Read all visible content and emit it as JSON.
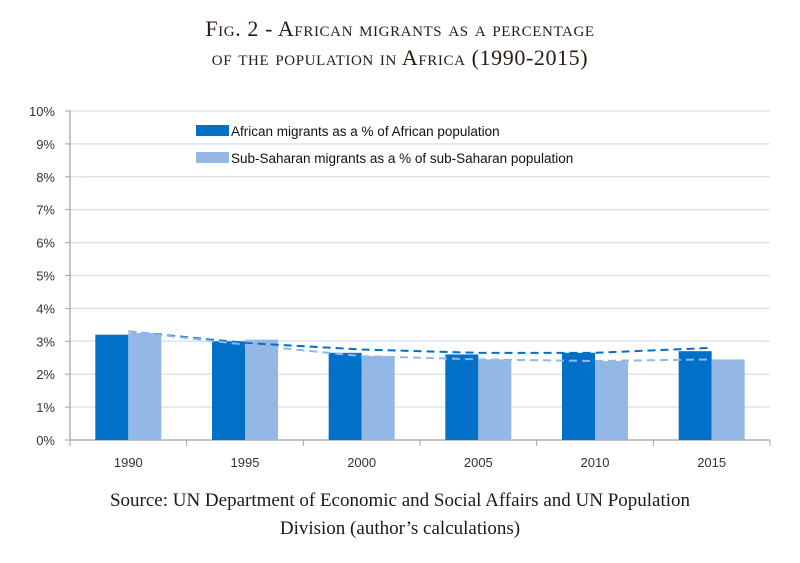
{
  "figure": {
    "title_line1": "Fig. 2 - African migrants as a percentage",
    "title_line2": "of the population in Africa (1990-2015)",
    "source_line1": "Source: UN Department of Economic and Social Affairs and UN Population",
    "source_line2": "Division (author’s calculations)"
  },
  "chart_data": {
    "type": "bar",
    "title": "Fig. 2 - African migrants as a percentage of the population in Africa (1990-2015)",
    "xlabel": "",
    "ylabel": "",
    "categories": [
      "1990",
      "1995",
      "2000",
      "2005",
      "2010",
      "2015"
    ],
    "ylim": [
      0,
      10
    ],
    "yticks": [
      "0%",
      "1%",
      "2%",
      "3%",
      "4%",
      "5%",
      "6%",
      "7%",
      "8%",
      "9%",
      "10%"
    ],
    "grid": true,
    "legend_position": "top-center",
    "series": [
      {
        "name": "African migrants as a % of African population",
        "color": "#0070c8",
        "values": [
          3.2,
          3.0,
          2.65,
          2.6,
          2.65,
          2.7
        ]
      },
      {
        "name": "Sub-Saharan migrants as a % of sub-Saharan population",
        "color": "#94b8e6",
        "values": [
          3.25,
          3.05,
          2.55,
          2.45,
          2.4,
          2.45
        ]
      }
    ],
    "trendlines": [
      {
        "series": "African migrants as a % of African population",
        "style": "dashed",
        "color": "#0070c8",
        "values": [
          3.3,
          2.95,
          2.75,
          2.65,
          2.65,
          2.8
        ]
      },
      {
        "series": "Sub-Saharan migrants as a % of sub-Saharan population",
        "style": "dashed",
        "color": "#94b8e6",
        "values": [
          3.3,
          2.9,
          2.55,
          2.45,
          2.4,
          2.45
        ]
      }
    ]
  }
}
